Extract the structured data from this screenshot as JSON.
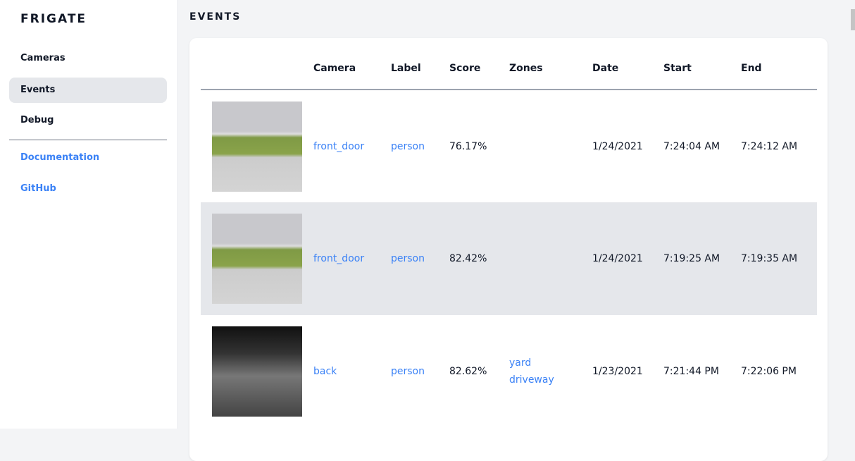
{
  "sidebar": {
    "brand": "FRIGATE",
    "items": [
      {
        "label": "Cameras"
      },
      {
        "label": "Events",
        "active": true
      },
      {
        "label": "Debug"
      }
    ],
    "links": [
      {
        "label": "Documentation"
      },
      {
        "label": "GitHub"
      }
    ]
  },
  "page": {
    "title": "EVENTS"
  },
  "table": {
    "headers": [
      "",
      "Camera",
      "Label",
      "Score",
      "Zones",
      "Date",
      "Start",
      "End"
    ],
    "rows": [
      {
        "camera": "front_door",
        "label": "person",
        "score": "76.17%",
        "zones": [
          "",
          ""
        ],
        "date": "1/24/2021",
        "start": "7:24:04 AM",
        "end": "7:24:12 AM",
        "thumb": "color"
      },
      {
        "camera": "front_door",
        "label": "person",
        "score": "82.42%",
        "zones": [
          "",
          ""
        ],
        "date": "1/24/2021",
        "start": "7:19:25 AM",
        "end": "7:19:35 AM",
        "thumb": "color"
      },
      {
        "camera": "back",
        "label": "person",
        "score": "82.62%",
        "zones": [
          "yard",
          "driveway"
        ],
        "date": "1/23/2021",
        "start": "7:21:44 PM",
        "end": "7:22:06 PM",
        "thumb": "grayscale"
      }
    ]
  },
  "colors": {
    "accent": "#3b82f6",
    "active_bg": "#e5e7eb"
  }
}
